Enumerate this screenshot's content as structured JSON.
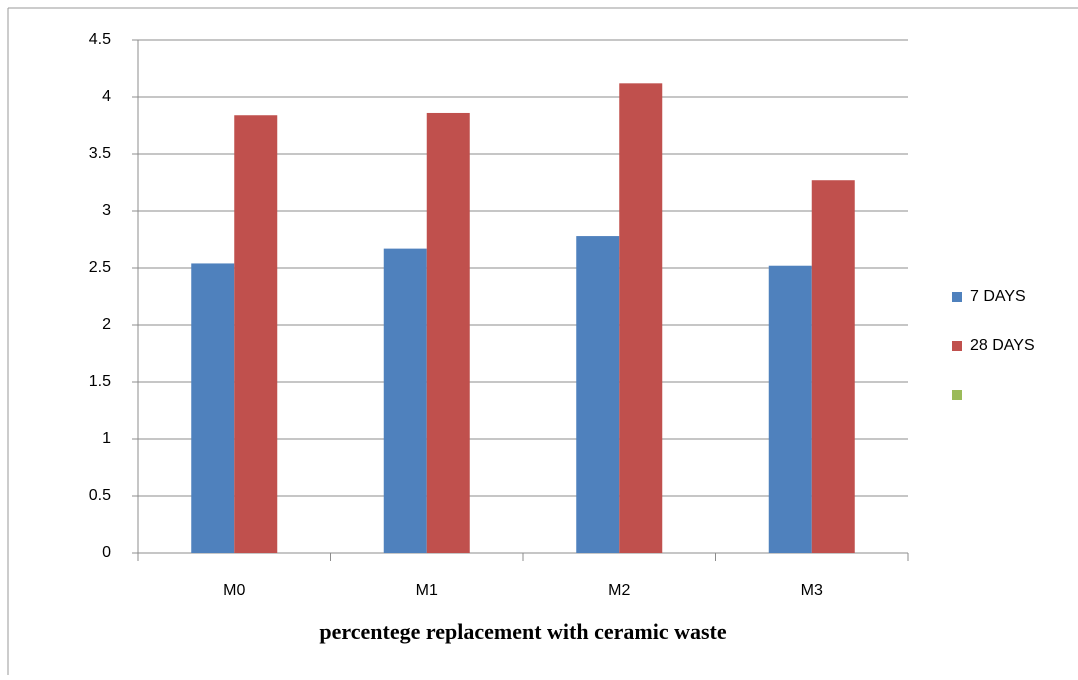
{
  "chart_data": {
    "type": "bar",
    "x_label": "percentege replacement with ceramic waste",
    "categories": [
      "M0",
      "M1",
      "M2",
      "M3"
    ],
    "series": [
      {
        "name": "7 DAYS",
        "color": "#4f81bd",
        "values": [
          2.54,
          2.67,
          2.78,
          2.52
        ]
      },
      {
        "name": "28 DAYS",
        "color": "#c0504d",
        "values": [
          3.84,
          3.86,
          4.12,
          3.27
        ]
      },
      {
        "name": null,
        "color": "#9bbb59",
        "values": [
          null,
          null,
          null,
          null
        ]
      }
    ],
    "ylim": [
      0,
      4.5
    ],
    "yticks": [
      0,
      0.5,
      1,
      1.5,
      2,
      2.5,
      3,
      3.5,
      4,
      4.5
    ],
    "grid": true,
    "legend": "right"
  }
}
